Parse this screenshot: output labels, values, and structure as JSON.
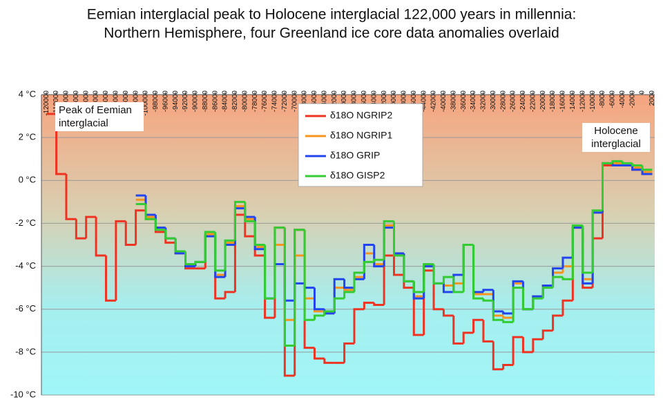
{
  "chart_data": {
    "type": "line",
    "step": true,
    "title": "Eemian interglacial peak to Holocene interglacial 122,000 years in millennia:",
    "subtitle": "Northern Hemisphere, four Greenland ice core data anomalies overlaid",
    "annotations": [
      "Peak of Eemian interglacial",
      "Holocene interglacial"
    ],
    "legend": "upper center",
    "grid": true,
    "xlim": [
      -121000,
      2500
    ],
    "ylim": [
      -10,
      4
    ],
    "yticks": [
      {
        "value": -10,
        "label": "-10 °C"
      },
      {
        "value": -8,
        "label": "-8 °C"
      },
      {
        "value": -6,
        "label": "-6 °C"
      },
      {
        "value": -4,
        "label": "-4 °C"
      },
      {
        "value": -2,
        "label": "-2 °C"
      },
      {
        "value": 0,
        "label": "0 °C"
      },
      {
        "value": 2,
        "label": "2 °C"
      },
      {
        "value": 4,
        "label": "4 °C"
      }
    ],
    "xticks": [
      -120000,
      -118000,
      -116000,
      -114000,
      -112000,
      -110000,
      -108000,
      -106000,
      -104000,
      -102000,
      -100000,
      -98000,
      -96000,
      -94000,
      -92000,
      -90000,
      -88000,
      -86000,
      -84000,
      -82000,
      -80000,
      -78000,
      -76000,
      -74000,
      -72000,
      -70000,
      -68000,
      -66000,
      -64000,
      -62000,
      -60000,
      -58000,
      -56000,
      -54000,
      -52000,
      -50000,
      -48000,
      -46000,
      -44000,
      -42000,
      -40000,
      -38000,
      -36000,
      -34000,
      -32000,
      -30000,
      -28000,
      -26000,
      -24000,
      -22000,
      -20000,
      -18000,
      -16000,
      -14000,
      -12000,
      -10000,
      -8000,
      -6000,
      -4000,
      -2000,
      0,
      2000
    ],
    "x": [
      -120000,
      -118000,
      -116000,
      -114000,
      -112000,
      -110000,
      -108000,
      -106000,
      -104000,
      -102000,
      -100000,
      -98000,
      -96000,
      -94000,
      -92000,
      -90000,
      -88000,
      -86000,
      -84000,
      -82000,
      -80000,
      -78000,
      -76000,
      -74000,
      -72000,
      -70000,
      -68000,
      -66000,
      -64000,
      -62000,
      -60000,
      -58000,
      -56000,
      -54000,
      -52000,
      -50000,
      -48000,
      -46000,
      -44000,
      -42000,
      -40000,
      -38000,
      -36000,
      -34000,
      -32000,
      -30000,
      -28000,
      -26000,
      -24000,
      -22000,
      -20000,
      -18000,
      -16000,
      -14000,
      -12000,
      -10000,
      -8000,
      -6000,
      -4000,
      -2000,
      0
    ],
    "series": [
      {
        "name": "δ18O NGRIP2",
        "color": "#ee3322",
        "values": [
          3.1,
          0.3,
          -1.8,
          -2.7,
          -1.7,
          -3.5,
          -5.6,
          -1.9,
          -3.0,
          -1.4,
          -1.8,
          -2.4,
          -2.9,
          -3.4,
          -4.1,
          -4.1,
          -2.5,
          -5.5,
          -5.2,
          -1.6,
          -2.6,
          -3.5,
          -6.4,
          -2.2,
          -9.1,
          -2.3,
          -7.8,
          -8.3,
          -8.5,
          -8.5,
          -7.6,
          -6.0,
          -5.7,
          -5.8,
          -3.5,
          -4.4,
          -5.0,
          -7.2,
          -4.2,
          -6.0,
          -6.3,
          -7.6,
          -7.1,
          -6.5,
          -7.5,
          -8.8,
          -8.6,
          -7.3,
          -8.0,
          -7.4,
          -7.0,
          -6.3,
          -5.6,
          -2.2,
          -5.0,
          -2.7,
          0.7,
          0.8,
          0.7,
          0.5,
          0.3
        ]
      },
      {
        "name": "δ18O NGRIP1",
        "color": "#f7941d",
        "values": [
          null,
          null,
          null,
          null,
          null,
          null,
          null,
          null,
          null,
          -0.9,
          -1.7,
          -2.2,
          -2.7,
          -3.4,
          -4.0,
          -3.8,
          -2.5,
          -4.4,
          -2.9,
          -1.2,
          -1.8,
          -3.1,
          -5.5,
          -3.0,
          -6.5,
          -3.5,
          -5.5,
          -6.1,
          -6.2,
          -5.0,
          -5.1,
          -4.5,
          -3.4,
          -3.9,
          -2.1,
          -3.4,
          -4.7,
          -5.4,
          -4.0,
          -4.8,
          -4.9,
          -4.8,
          -3.0,
          -5.3,
          -5.3,
          -6.3,
          -6.4,
          -4.8,
          -6.0,
          -5.4,
          -4.9,
          -4.3,
          -4.0,
          -2.2,
          -4.6,
          -1.5,
          0.8,
          0.8,
          0.7,
          0.6,
          0.4
        ]
      },
      {
        "name": "δ18O GRIP",
        "color": "#2244ee",
        "values": [
          null,
          null,
          null,
          null,
          null,
          null,
          null,
          null,
          null,
          -0.7,
          -1.6,
          -2.2,
          -2.7,
          -3.4,
          -4.0,
          -3.8,
          -2.6,
          -4.5,
          -3.0,
          -1.3,
          -1.7,
          -3.2,
          -5.5,
          -3.9,
          -5.6,
          -4.8,
          -5.0,
          -6.0,
          -6.2,
          -4.6,
          -5.0,
          -4.6,
          -3.0,
          -4.0,
          -2.2,
          -3.4,
          -4.7,
          -5.5,
          -4.0,
          -4.8,
          -5.2,
          -4.4,
          -3.0,
          -5.2,
          -5.1,
          -6.1,
          -6.2,
          -4.7,
          -6.0,
          -5.4,
          -4.9,
          -4.1,
          -3.6,
          -2.2,
          -4.8,
          -1.5,
          0.8,
          0.7,
          0.7,
          0.5,
          0.3
        ]
      },
      {
        "name": "δ18O GISP2",
        "color": "#33cc33",
        "values": [
          null,
          null,
          null,
          null,
          null,
          null,
          null,
          null,
          null,
          -1.1,
          -1.8,
          -2.3,
          -2.7,
          -3.3,
          -3.9,
          -3.8,
          -2.4,
          -4.2,
          -2.8,
          -1.0,
          -1.9,
          -3.0,
          -5.5,
          -2.2,
          -7.7,
          -2.3,
          -6.5,
          -6.3,
          -6.1,
          -5.5,
          -5.2,
          -4.3,
          -3.8,
          -3.7,
          -1.9,
          -3.5,
          -4.7,
          -5.2,
          -3.9,
          -4.8,
          -4.5,
          -5.2,
          -3.0,
          -5.5,
          -5.6,
          -6.5,
          -6.6,
          -5.0,
          -6.0,
          -5.5,
          -5.0,
          -4.5,
          -4.6,
          -2.1,
          -4.3,
          -1.4,
          0.8,
          0.9,
          0.8,
          0.7,
          0.5
        ]
      }
    ]
  }
}
